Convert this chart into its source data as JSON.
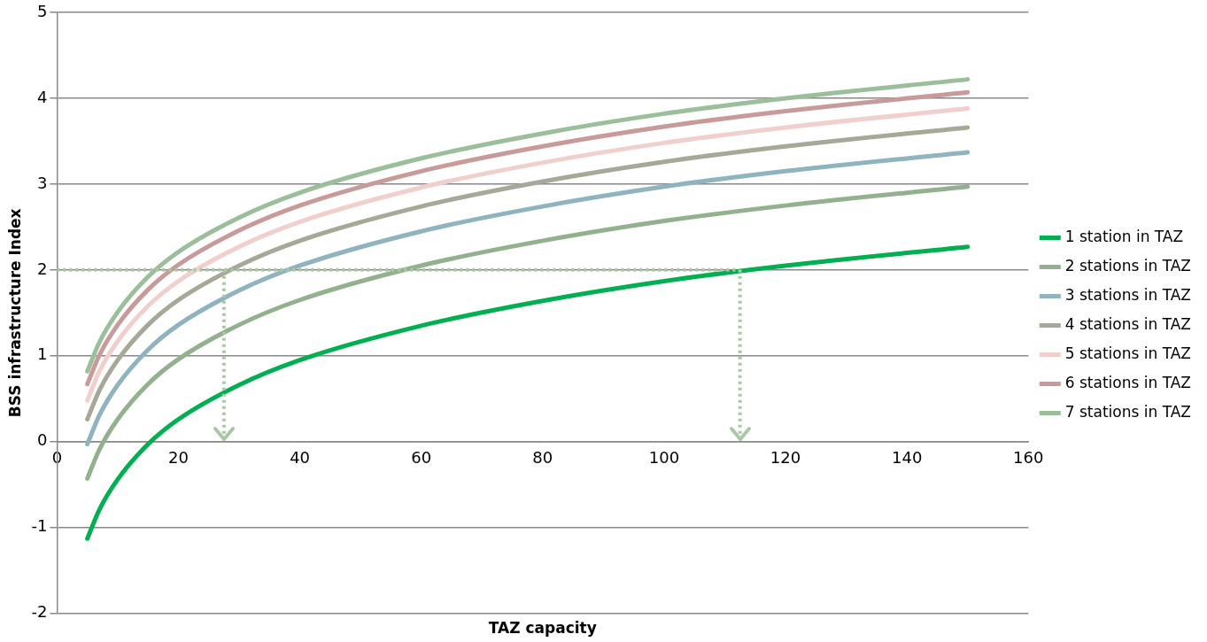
{
  "chart_data": {
    "type": "line",
    "xlabel": "TAZ capacity",
    "ylabel": "BSS infrastructure Index",
    "xlim": [
      0,
      160
    ],
    "xticks": [
      0,
      20,
      40,
      60,
      80,
      100,
      120,
      140,
      160
    ],
    "ylim": [
      -2,
      5
    ],
    "yticks": [
      -2,
      -1,
      0,
      1,
      2,
      3,
      4,
      5
    ],
    "grid": "y",
    "legend": "right",
    "marker": "none",
    "line_style": "solid",
    "x": [
      5,
      7,
      10,
      15,
      20,
      30,
      40,
      60,
      80,
      100,
      120,
      150
    ],
    "series": [
      {
        "name": "1 station in TAZ",
        "color": "#00b050",
        "values": [
          -1.13,
          -0.79,
          -0.44,
          -0.03,
          0.26,
          0.66,
          0.95,
          1.35,
          1.64,
          1.87,
          2.05,
          2.27
        ]
      },
      {
        "name": "2 stations in TAZ",
        "color": "#93b18e",
        "values": [
          -0.43,
          -0.09,
          0.26,
          0.67,
          0.96,
          1.36,
          1.65,
          2.05,
          2.34,
          2.57,
          2.75,
          2.97
        ]
      },
      {
        "name": "3 stations in TAZ",
        "color": "#8fb3bf",
        "values": [
          -0.03,
          0.31,
          0.66,
          1.07,
          1.36,
          1.76,
          2.05,
          2.45,
          2.74,
          2.97,
          3.15,
          3.37
        ]
      },
      {
        "name": "4 stations in TAZ",
        "color": "#a8a898",
        "values": [
          0.26,
          0.6,
          0.95,
          1.36,
          1.65,
          2.05,
          2.34,
          2.74,
          3.03,
          3.26,
          3.44,
          3.66
        ]
      },
      {
        "name": "5 stations in TAZ",
        "color": "#f0cfcc",
        "values": [
          0.48,
          0.82,
          1.17,
          1.58,
          1.87,
          2.27,
          2.56,
          2.96,
          3.25,
          3.48,
          3.66,
          3.88
        ]
      },
      {
        "name": "6 stations in TAZ",
        "color": "#c99a9a",
        "values": [
          0.67,
          1.01,
          1.36,
          1.77,
          2.06,
          2.46,
          2.75,
          3.15,
          3.44,
          3.67,
          3.85,
          4.07
        ]
      },
      {
        "name": "7 stations in TAZ",
        "color": "#9bbf9b",
        "values": [
          0.82,
          1.16,
          1.51,
          1.92,
          2.21,
          2.61,
          2.9,
          3.3,
          3.59,
          3.82,
          4.0,
          4.22
        ]
      }
    ],
    "ref_lines": [
      {
        "axis": "y",
        "value": 2,
        "color": "#a9c9a2",
        "line_style": "dotted"
      },
      {
        "axis": "x",
        "value": 27.5,
        "color": "#a9c9a2",
        "line_style": "dotted"
      },
      {
        "axis": "x",
        "value": 112.5,
        "color": "#a9c9a2",
        "line_style": "dotted"
      }
    ]
  }
}
